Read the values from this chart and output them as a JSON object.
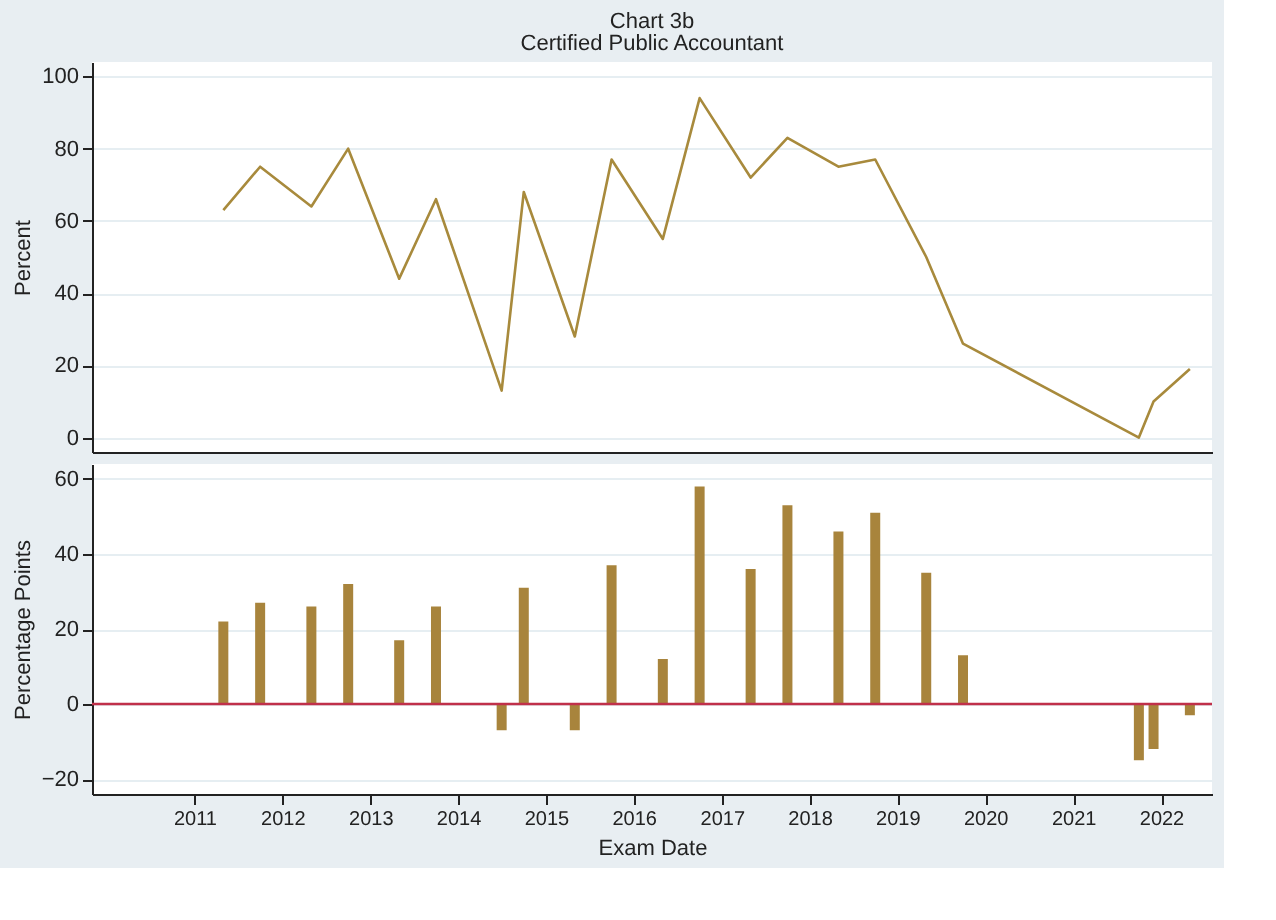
{
  "chart_data": [
    {
      "type": "line",
      "title": "Chart 3b",
      "subtitle": "Certified Public Accountant",
      "ylabel": "Percent",
      "x": [
        "2011-05",
        "2011-10",
        "2012-05",
        "2012-10",
        "2013-05",
        "2013-10",
        "2014-07",
        "2014-10",
        "2015-05",
        "2015-10",
        "2016-05",
        "2016-10",
        "2017-05",
        "2017-10",
        "2018-05",
        "2018-10",
        "2019-05",
        "2019-10",
        "2021-10",
        "2021-12",
        "2022-05"
      ],
      "series": [
        {
          "color": "#a88a3c",
          "values": [
            63,
            75,
            64,
            80,
            44,
            66,
            13,
            68,
            28,
            77,
            55,
            94,
            72,
            83,
            75,
            77,
            50,
            26,
            0,
            10,
            19
          ]
        }
      ],
      "xlim": [
        "2009-11",
        "2022-08"
      ],
      "ylim": [
        -4,
        104
      ],
      "yticks": [
        0,
        20,
        40,
        60,
        80,
        100
      ],
      "grid": "y",
      "tick_labels": "y",
      "line_style": "solid",
      "marker": "none"
    },
    {
      "type": "bar",
      "xlabel": "Exam Date",
      "ylabel": "Percentage Points",
      "x": [
        "2011-05",
        "2011-10",
        "2012-05",
        "2012-10",
        "2013-05",
        "2013-10",
        "2014-07",
        "2014-10",
        "2015-05",
        "2015-10",
        "2016-05",
        "2016-10",
        "2017-05",
        "2017-10",
        "2018-05",
        "2018-10",
        "2019-05",
        "2019-10",
        "2021-10",
        "2021-12",
        "2022-05"
      ],
      "series": [
        {
          "color": "#a8843c",
          "values": [
            22,
            27,
            26,
            32,
            17,
            26,
            -7,
            31,
            -7,
            37,
            12,
            58,
            36,
            53,
            46,
            51,
            35,
            13,
            -15,
            -12,
            -3
          ]
        }
      ],
      "xlim": [
        "2009-11",
        "2022-08"
      ],
      "xticks": [
        "2011",
        "2012",
        "2013",
        "2014",
        "2015",
        "2016",
        "2017",
        "2018",
        "2019",
        "2020",
        "2021",
        "2022"
      ],
      "ylim": [
        -24,
        64
      ],
      "yticks": [
        -20,
        0,
        20,
        40,
        60
      ],
      "grid": "y",
      "ref_lines": [
        {
          "axis": "y",
          "value": 0,
          "color": "#c0304a"
        }
      ]
    }
  ]
}
